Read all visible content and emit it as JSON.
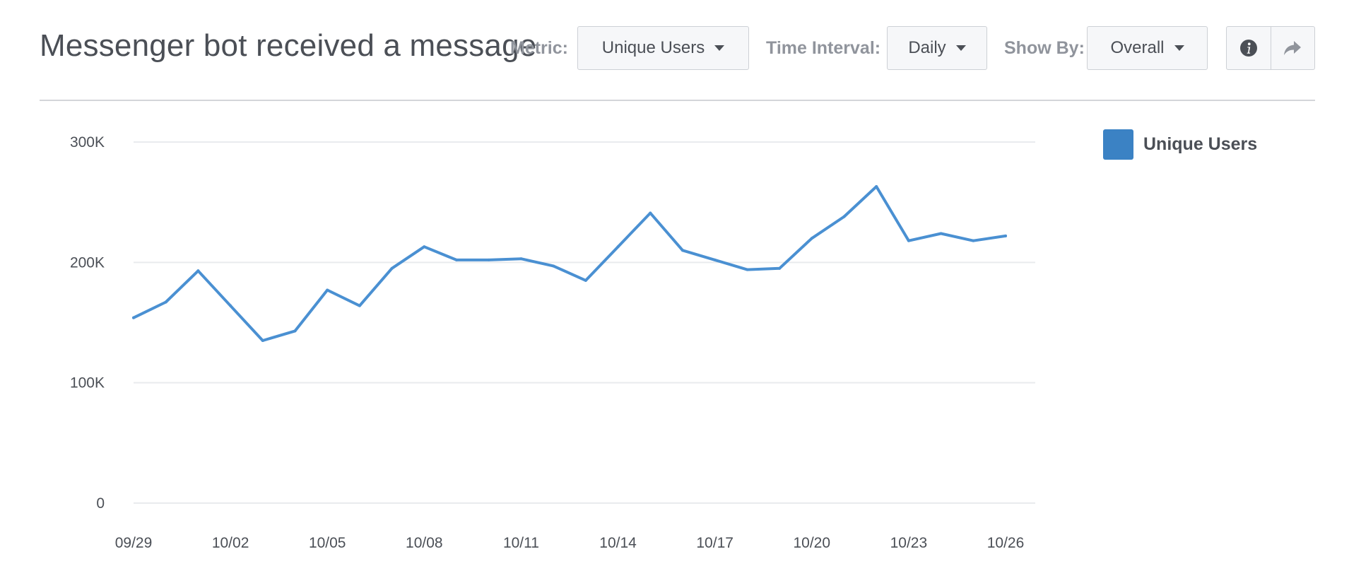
{
  "header": {
    "title": "Messenger bot received a message",
    "metric_label": "Metric:",
    "metric_value": "Unique Users",
    "interval_label": "Time Interval:",
    "interval_value": "Daily",
    "showby_label": "Show By:",
    "showby_value": "Overall",
    "info_icon": "info-icon",
    "share_icon": "share-icon"
  },
  "colors": {
    "series": "#4a90d2",
    "legend": "#3b82c4",
    "grid": "#e9ebee",
    "tick": "#4b4f56"
  },
  "chart_data": {
    "type": "line",
    "title": "Messenger bot received a message",
    "xlabel": "",
    "ylabel": "",
    "ylim": [
      0,
      300000
    ],
    "yticks": [
      0,
      100000,
      200000,
      300000
    ],
    "ytick_labels": [
      "0",
      "100K",
      "200K",
      "300K"
    ],
    "x": [
      "09/29",
      "09/30",
      "10/01",
      "10/02",
      "10/03",
      "10/04",
      "10/05",
      "10/06",
      "10/07",
      "10/08",
      "10/09",
      "10/10",
      "10/11",
      "10/12",
      "10/13",
      "10/14",
      "10/15",
      "10/16",
      "10/17",
      "10/18",
      "10/19",
      "10/20",
      "10/21",
      "10/22",
      "10/23",
      "10/24",
      "10/25",
      "10/26"
    ],
    "xtick_labels": [
      "09/29",
      "10/02",
      "10/05",
      "10/08",
      "10/11",
      "10/14",
      "10/17",
      "10/20",
      "10/23",
      "10/26"
    ],
    "grid": true,
    "legend_position": "top-right",
    "series": [
      {
        "name": "Unique Users",
        "values": [
          154000,
          167000,
          193000,
          164000,
          135000,
          143000,
          177000,
          164000,
          195000,
          213000,
          202000,
          202000,
          203000,
          197000,
          185000,
          213000,
          241000,
          210000,
          202000,
          194000,
          195000,
          220000,
          238000,
          263000,
          218000,
          224000,
          218000,
          222000
        ]
      }
    ]
  }
}
